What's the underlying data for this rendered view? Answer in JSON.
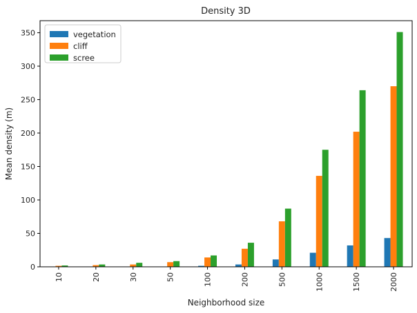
{
  "chart_data": {
    "type": "bar",
    "title": "Density 3D",
    "xlabel": "Neighborhood size",
    "ylabel": "Mean density (m)",
    "categories": [
      "10",
      "20",
      "30",
      "50",
      "100",
      "200",
      "500",
      "1000",
      "1500",
      "2000"
    ],
    "ylim": [
      0,
      368
    ],
    "yticks": [
      0,
      50,
      100,
      150,
      200,
      250,
      300,
      350
    ],
    "legend_position": "top-left",
    "grid": false,
    "x_tick_rotation": 90,
    "series": [
      {
        "name": "vegetation",
        "color": "#1f77b4",
        "values": [
          0.1,
          0.2,
          0.3,
          0.5,
          1.5,
          3.5,
          11,
          21,
          32,
          43
        ]
      },
      {
        "name": "cliff",
        "color": "#ff7f0e",
        "values": [
          1.5,
          2.5,
          3.5,
          7,
          14,
          27,
          68,
          136,
          202,
          270
        ]
      },
      {
        "name": "scree",
        "color": "#2ca02c",
        "values": [
          2,
          3.5,
          6,
          8.5,
          17,
          36,
          87,
          175,
          264,
          351
        ]
      }
    ]
  }
}
